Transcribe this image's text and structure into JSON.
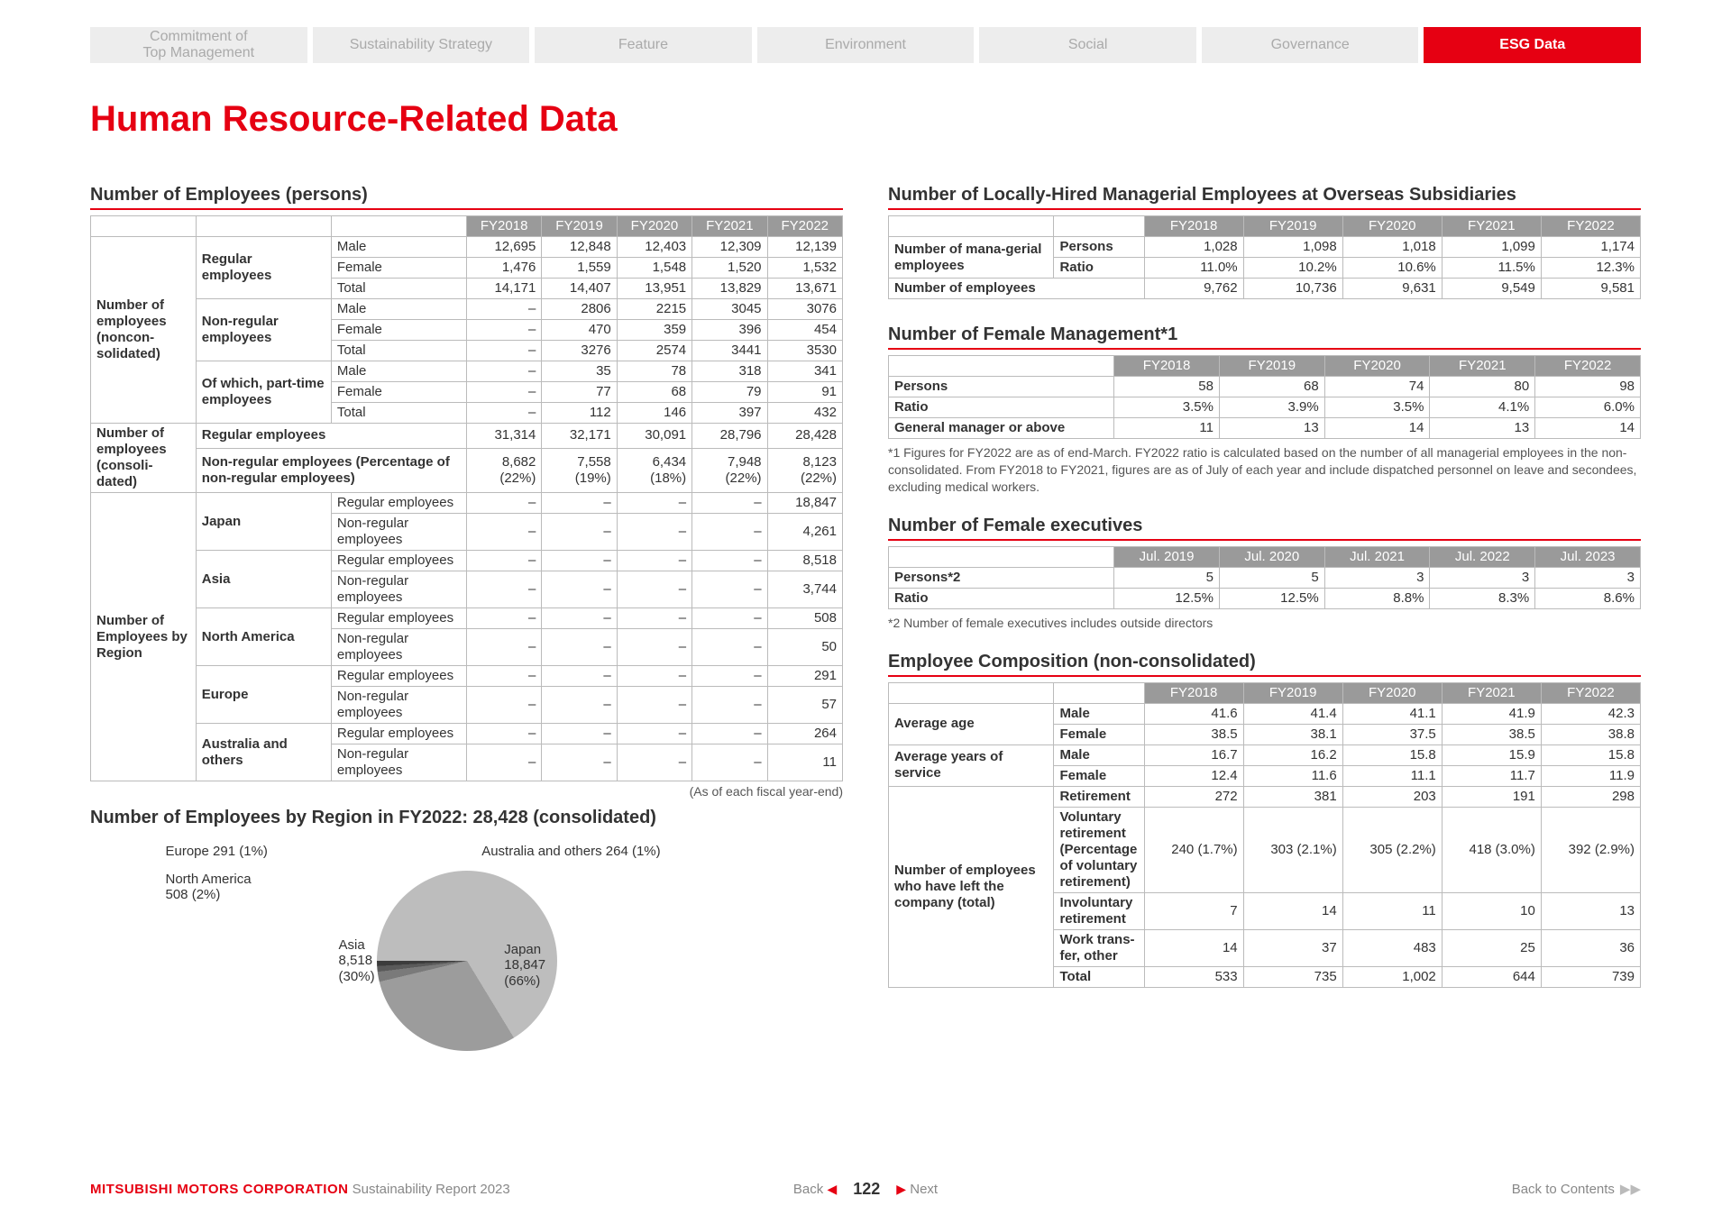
{
  "nav": {
    "tabs": [
      "Commitment of\nTop Management",
      "Sustainability Strategy",
      "Feature",
      "Environment",
      "Social",
      "Governance",
      "ESG Data"
    ],
    "active_index": 6
  },
  "page_title": "Human Resource-Related Data",
  "colors": {
    "accent": "#e60012",
    "tab_bg": "#ededed",
    "tab_text": "#aaaaaa",
    "th_bg": "#9a9a9a",
    "th_text": "#ffffff",
    "border": "#bbbbbb"
  },
  "tbl_employees": {
    "title": "Number of Employees (persons)",
    "caption": "(As of each fiscal year-end)",
    "year_headers": [
      "FY2018",
      "FY2019",
      "FY2020",
      "FY2021",
      "FY2022"
    ],
    "groups": [
      {
        "g": "Number of employees (noncon-solidated)",
        "rows": [
          {
            "a": "Regular employees",
            "b": "Male",
            "v": [
              "12,695",
              "12,848",
              "12,403",
              "12,309",
              "12,139"
            ]
          },
          {
            "a": "",
            "b": "Female",
            "v": [
              "1,476",
              "1,559",
              "1,548",
              "1,520",
              "1,532"
            ]
          },
          {
            "a": "",
            "b": "Total",
            "v": [
              "14,171",
              "14,407",
              "13,951",
              "13,829",
              "13,671"
            ]
          },
          {
            "a": "Non-regular employees",
            "b": "Male",
            "v": [
              "–",
              "2806",
              "2215",
              "3045",
              "3076"
            ]
          },
          {
            "a": "",
            "b": "Female",
            "v": [
              "–",
              "470",
              "359",
              "396",
              "454"
            ]
          },
          {
            "a": "",
            "b": "Total",
            "v": [
              "–",
              "3276",
              "2574",
              "3441",
              "3530"
            ]
          },
          {
            "a": "Of which, part-time employees",
            "b": "Male",
            "v": [
              "–",
              "35",
              "78",
              "318",
              "341"
            ]
          },
          {
            "a": "",
            "b": "Female",
            "v": [
              "–",
              "77",
              "68",
              "79",
              "91"
            ]
          },
          {
            "a": "",
            "b": "Total",
            "v": [
              "–",
              "112",
              "146",
              "397",
              "432"
            ]
          }
        ]
      },
      {
        "g": "Number of employees (consoli-dated)",
        "rows": [
          {
            "a": "Regular employees",
            "b": "",
            "v": [
              "31,314",
              "32,171",
              "30,091",
              "28,796",
              "28,428"
            ]
          },
          {
            "a": "Non-regular employees (Percentage of non-regular employees)",
            "b": "",
            "v": [
              "8,682 (22%)",
              "7,558 (19%)",
              "6,434 (18%)",
              "7,948 (22%)",
              "8,123 (22%)"
            ]
          }
        ]
      },
      {
        "g": "Number of Employees by Region",
        "rows": [
          {
            "a": "Japan",
            "b": "Regular employees",
            "v": [
              "–",
              "–",
              "–",
              "–",
              "18,847"
            ]
          },
          {
            "a": "",
            "b": "Non-regular employees",
            "v": [
              "–",
              "–",
              "–",
              "–",
              "4,261"
            ]
          },
          {
            "a": "Asia",
            "b": "Regular employees",
            "v": [
              "–",
              "–",
              "–",
              "–",
              "8,518"
            ]
          },
          {
            "a": "",
            "b": "Non-regular employees",
            "v": [
              "–",
              "–",
              "–",
              "–",
              "3,744"
            ]
          },
          {
            "a": "North America",
            "b": "Regular employees",
            "v": [
              "–",
              "–",
              "–",
              "–",
              "508"
            ]
          },
          {
            "a": "",
            "b": "Non-regular employees",
            "v": [
              "–",
              "–",
              "–",
              "–",
              "50"
            ]
          },
          {
            "a": "Europe",
            "b": "Regular employees",
            "v": [
              "–",
              "–",
              "–",
              "–",
              "291"
            ]
          },
          {
            "a": "",
            "b": "Non-regular employees",
            "v": [
              "–",
              "–",
              "–",
              "–",
              "57"
            ]
          },
          {
            "a": "Australia and others",
            "b": "Regular employees",
            "v": [
              "–",
              "–",
              "–",
              "–",
              "264"
            ]
          },
          {
            "a": "",
            "b": "Non-regular employees",
            "v": [
              "–",
              "–",
              "–",
              "–",
              "11"
            ]
          }
        ]
      }
    ]
  },
  "pie": {
    "title": "Number of Employees by Region in FY2022: 28,428 (consolidated)",
    "slices": [
      {
        "label": "Japan",
        "value": 18847,
        "pct": "66%",
        "color": "#bdbdbd"
      },
      {
        "label": "Asia",
        "value": 8518,
        "pct": "30%",
        "color": "#9c9c9c"
      },
      {
        "label": "North America",
        "value": 508,
        "pct": "2%",
        "color": "#7a7a7a"
      },
      {
        "label": "Europe",
        "value": 291,
        "pct": "1%",
        "color": "#5a5a5a"
      },
      {
        "label": "Australia and others",
        "value": 264,
        "pct": "1%",
        "color": "#3c3c3c"
      }
    ],
    "label_japan": "Japan\n18,847\n(66%)",
    "label_asia": "Asia\n8,518\n(30%)",
    "label_na": "North America\n508 (2%)",
    "label_eu": "Europe 291 (1%)",
    "label_au": "Australia and others 264 (1%)"
  },
  "tbl_local": {
    "title": "Number of Locally-Hired Managerial Employees at Overseas Subsidiaries",
    "headers": [
      "",
      "",
      "FY2018",
      "FY2019",
      "FY2020",
      "FY2021",
      "FY2022"
    ],
    "rows": [
      {
        "a": "Number of mana-gerial employees",
        "b": "Persons",
        "v": [
          "1,028",
          "1,098",
          "1,018",
          "1,099",
          "1,174"
        ]
      },
      {
        "a": "",
        "b": "Ratio",
        "v": [
          "11.0%",
          "10.2%",
          "10.6%",
          "11.5%",
          "12.3%"
        ]
      },
      {
        "a": "Number of employees",
        "b": "",
        "v": [
          "9,762",
          "10,736",
          "9,631",
          "9,549",
          "9,581"
        ]
      }
    ]
  },
  "tbl_fmgmt": {
    "title": "Number of Female Management*1",
    "headers": [
      "",
      "FY2018",
      "FY2019",
      "FY2020",
      "FY2021",
      "FY2022"
    ],
    "rows": [
      {
        "a": "Persons",
        "v": [
          "58",
          "68",
          "74",
          "80",
          "98"
        ]
      },
      {
        "a": "Ratio",
        "v": [
          "3.5%",
          "3.9%",
          "3.5%",
          "4.1%",
          "6.0%"
        ]
      },
      {
        "a": "General manager or above",
        "v": [
          "11",
          "13",
          "14",
          "13",
          "14"
        ]
      }
    ],
    "note": "*1 Figures for FY2022 are as of end-March. FY2022 ratio is calculated based on the number of all managerial employees in the non-consolidated. From FY2018 to FY2021, figures are as of July of each year and include dispatched personnel on leave and secondees, excluding medical workers."
  },
  "tbl_fexec": {
    "title": "Number of Female executives",
    "headers": [
      "",
      "Jul. 2019",
      "Jul. 2020",
      "Jul. 2021",
      "Jul. 2022",
      "Jul. 2023"
    ],
    "rows": [
      {
        "a": "Persons*2",
        "v": [
          "5",
          "5",
          "3",
          "3",
          "3"
        ]
      },
      {
        "a": "Ratio",
        "v": [
          "12.5%",
          "12.5%",
          "8.8%",
          "8.3%",
          "8.6%"
        ]
      }
    ],
    "note": "*2 Number of female executives includes outside directors"
  },
  "tbl_comp": {
    "title": "Employee Composition (non-consolidated)",
    "headers": [
      "",
      "",
      "FY2018",
      "FY2019",
      "FY2020",
      "FY2021",
      "FY2022"
    ],
    "rows": [
      {
        "a": "Average age",
        "b": "Male",
        "v": [
          "41.6",
          "41.4",
          "41.1",
          "41.9",
          "42.3"
        ]
      },
      {
        "a": "",
        "b": "Female",
        "v": [
          "38.5",
          "38.1",
          "37.5",
          "38.5",
          "38.8"
        ]
      },
      {
        "a": "Average years of service",
        "b": "Male",
        "v": [
          "16.7",
          "16.2",
          "15.8",
          "15.9",
          "15.8"
        ]
      },
      {
        "a": "",
        "b": "Female",
        "v": [
          "12.4",
          "11.6",
          "11.1",
          "11.7",
          "11.9"
        ]
      },
      {
        "a": "Number of employees who have left the company (total)",
        "b": "Retirement",
        "v": [
          "272",
          "381",
          "203",
          "191",
          "298"
        ]
      },
      {
        "a": "",
        "b": "Voluntary retirement (Percentage of voluntary retirement)",
        "v": [
          "240 (1.7%)",
          "303 (2.1%)",
          "305 (2.2%)",
          "418 (3.0%)",
          "392 (2.9%)"
        ]
      },
      {
        "a": "",
        "b": "Involuntary retirement",
        "v": [
          "7",
          "14",
          "11",
          "10",
          "13"
        ]
      },
      {
        "a": "",
        "b": "Work trans-fer, other",
        "v": [
          "14",
          "37",
          "483",
          "25",
          "36"
        ]
      },
      {
        "a": "",
        "b": "Total",
        "v": [
          "533",
          "735",
          "1,002",
          "644",
          "739"
        ]
      }
    ]
  },
  "footer": {
    "brand": "MITSUBISHI MOTORS CORPORATION",
    "sub": "Sustainability Report 2023",
    "back": "Back",
    "page": "122",
    "next": "Next",
    "contents": "Back to Contents"
  }
}
